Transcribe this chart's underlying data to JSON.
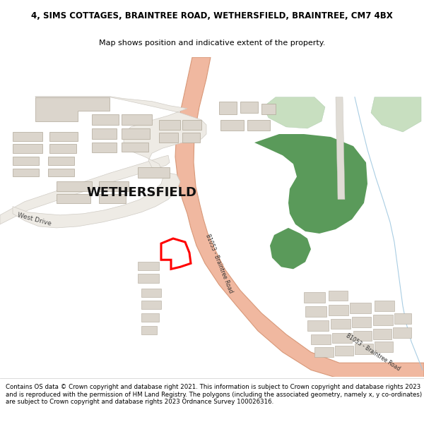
{
  "title_line1": "4, SIMS COTTAGES, BRAINTREE ROAD, WETHERSFIELD, BRAINTREE, CM7 4BX",
  "title_line2": "Map shows position and indicative extent of the property.",
  "footer_text": "Contains OS data © Crown copyright and database right 2021. This information is subject to Crown copyright and database rights 2023 and is reproduced with the permission of HM Land Registry. The polygons (including the associated geometry, namely x, y co-ordinates) are subject to Crown copyright and database rights 2023 Ordnance Survey 100026316.",
  "map_bg": "#ffffff",
  "road_color": "#f0b8a0",
  "road_edge_color": "#d89878",
  "building_color": "#dbd5cc",
  "building_edge": "#b0a898",
  "green_dark": "#5a9a5a",
  "green_light": "#c8dfc0",
  "plot_color": "#ff0000",
  "water_color": "#b8d8e8",
  "road_minor_color": "#e8e4de",
  "road_minor_edge": "#c8c4bc",
  "label_wethersfield": "WETHERSFIELD",
  "label_west_drive": "West Drive",
  "label_b1053_1": "B1053 - Braintree Road",
  "label_b1053_2": "B1053 - Braintree Road"
}
